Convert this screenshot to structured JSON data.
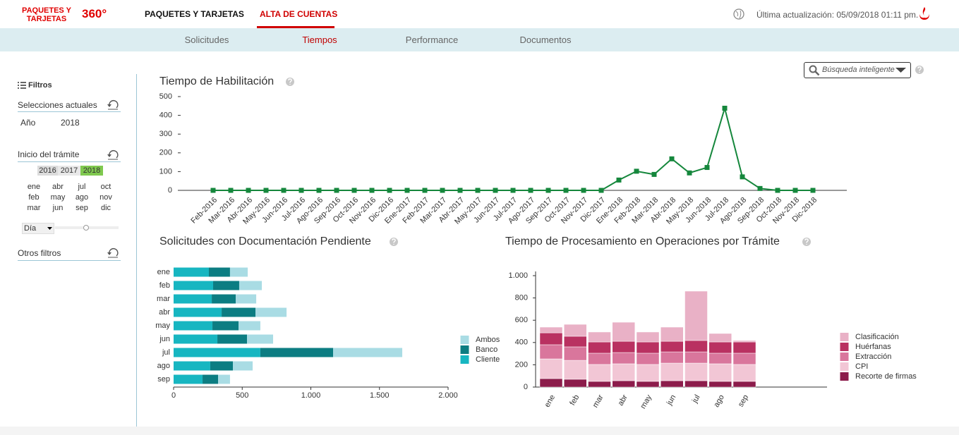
{
  "header": {
    "logo": "PAQUETES Y TARJETAS",
    "logo_badge": "360°",
    "tabs": [
      "PAQUETES Y TARJETAS",
      "ALTA DE CUENTAS"
    ],
    "last_update": "Última actualización: 05/09/2018 01:11 pm."
  },
  "subnav": [
    "Solicitudes",
    "Tiempos",
    "Performance",
    "Documentos"
  ],
  "sidebar": {
    "title": "Filtros",
    "current_label": "Selecciones actuales",
    "year_label": "Año",
    "year_value": "2018",
    "start_label": "Inicio del trámite",
    "years": [
      "2016",
      "2017",
      "2018"
    ],
    "months": [
      "ene",
      "abr",
      "jul",
      "oct",
      "feb",
      "may",
      "ago",
      "nov",
      "mar",
      "jun",
      "sep",
      "dic"
    ],
    "granularity": "Día",
    "other_label": "Otros filtros"
  },
  "search_placeholder": "Búsqueda inteligente",
  "chart_data": [
    {
      "type": "line",
      "title": "Tiempo de Habilitación",
      "categories": [
        "Feb-2016",
        "Mar-2016",
        "Abr-2016",
        "May-2016",
        "Jun-2016",
        "Jul-2016",
        "Ago-2016",
        "Sep-2016",
        "Oct-2016",
        "Nov-2016",
        "Dic-2016",
        "Ene-2017",
        "Feb-2017",
        "Mar-2017",
        "Abr-2017",
        "May-2017",
        "Jun-2017",
        "Jul-2017",
        "Ago-2017",
        "Sep-2017",
        "Oct-2017",
        "Nov-2017",
        "Dic-2017",
        "Ene-2018",
        "Feb-2018",
        "Mar-2018",
        "Abr-2018",
        "May-2018",
        "Jun-2018",
        "Jul-2018",
        "Ago-2018",
        "Sep-2018",
        "Oct-2018",
        "Nov-2018",
        "Dic-2018"
      ],
      "values": [
        0,
        0,
        0,
        0,
        0,
        0,
        0,
        0,
        0,
        0,
        0,
        0,
        0,
        0,
        0,
        0,
        0,
        0,
        0,
        0,
        0,
        0,
        0,
        55,
        102,
        85,
        168,
        93,
        122,
        438,
        72,
        10,
        0,
        0,
        0
      ],
      "color": "#15873c",
      "ylim": [
        0,
        500
      ],
      "yticks": [
        0,
        100,
        200,
        300,
        400,
        500
      ]
    },
    {
      "type": "bar",
      "orientation": "horizontal",
      "stacked": true,
      "title": "Solicitudes con Documentación Pendiente",
      "categories": [
        "ene",
        "feb",
        "mar",
        "abr",
        "may",
        "jun",
        "jul",
        "ago",
        "sep"
      ],
      "series": [
        {
          "name": "Cliente",
          "color": "#17b6c1",
          "values": [
            257,
            288,
            278,
            350,
            283,
            319,
            632,
            267,
            211
          ]
        },
        {
          "name": "Banco",
          "color": "#0c7d82",
          "values": [
            154,
            190,
            175,
            247,
            190,
            216,
            530,
            165,
            113
          ]
        },
        {
          "name": "Ambos",
          "color": "#a9dce4",
          "values": [
            129,
            165,
            149,
            226,
            159,
            190,
            504,
            144,
            87
          ]
        }
      ],
      "xlim": [
        0,
        2000
      ],
      "xticks": [
        0,
        500,
        {
          "value": 1000,
          "label": "1.000"
        },
        {
          "value": 1500,
          "label": "1.500"
        },
        {
          "value": 2000,
          "label": "2.000"
        }
      ],
      "legend": "right"
    },
    {
      "type": "bar",
      "stacked": true,
      "title": "Tiempo de Procesamiento en Operaciones por Trámite",
      "categories": [
        "ene",
        "feb",
        "mar",
        "abr",
        "may",
        "jun",
        "jul",
        "ago",
        "sep"
      ],
      "series": [
        {
          "name": "Recorte de firmas",
          "color": "#8c1c4b",
          "values": [
            76,
            70,
            51,
            57,
            51,
            57,
            57,
            51,
            51
          ]
        },
        {
          "name": "CPI",
          "color": "#f2c6d5",
          "values": [
            177,
            170,
            152,
            152,
            152,
            158,
            158,
            158,
            152
          ]
        },
        {
          "name": "Extracción",
          "color": "#d9769c",
          "values": [
            127,
            121,
            101,
            101,
            101,
            101,
            101,
            95,
            101
          ]
        },
        {
          "name": "Huérfanas",
          "color": "#b93161",
          "values": [
            107,
            95,
            101,
            101,
            101,
            95,
            102,
            101,
            101
          ]
        },
        {
          "name": "Clasificación",
          "color": "#e9b1c6",
          "values": [
            51,
            107,
            89,
            171,
            89,
            127,
            443,
            76,
            13
          ]
        }
      ],
      "ylim": [
        0,
        1000
      ],
      "yticks": [
        0,
        200,
        400,
        600,
        800,
        {
          "value": 1000,
          "label": "1.000"
        }
      ],
      "legend": "right"
    }
  ]
}
